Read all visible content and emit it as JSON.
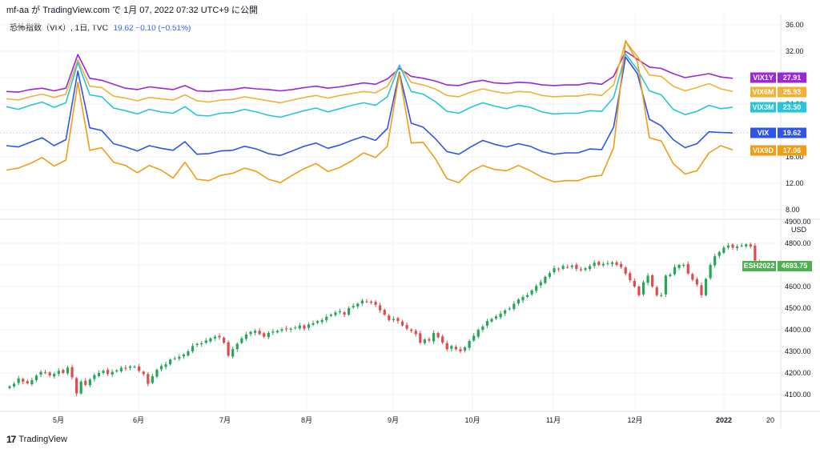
{
  "header": {
    "text": "mf-aa が TradingView.com で 1月 07, 2022 07:32 UTC+9 に公開"
  },
  "legend": {
    "title": "恐怖指数（VIX）, 1日, TVC",
    "values": "19.62  −0.10 (−0.51%)"
  },
  "footer": {
    "brand": "TradingView",
    "logo": "17"
  },
  "colors": {
    "VIX": "#2f54eb",
    "VIX9D": "#f39c12",
    "VIX3M": "#26c6da",
    "VIX6M": "#f2b134",
    "VIX1Y": "#9c27d6",
    "candle_up": "#26a65b",
    "candle_down": "#e04b4b",
    "ES_badge": "#4caf50"
  },
  "chart_data": [
    {
      "type": "line",
      "title": "恐怖指数（VIX）, 1日, TVC",
      "x_labels": [
        "5月",
        "6月",
        "7月",
        "8月",
        "9月",
        "10月",
        "11月",
        "12月",
        "2022",
        "20"
      ],
      "y_ticks": [
        "36.00",
        "32.00",
        "28.00",
        "24.00",
        "20.00",
        "16.00",
        "12.00",
        "8.00"
      ],
      "ylim": [
        8,
        36
      ],
      "grid": true,
      "series": [
        {
          "name": "VIX1Y",
          "last": "27.91",
          "values": [
            25.9,
            25.8,
            26.2,
            26.4,
            26.0,
            26.4,
            31.5,
            27.9,
            27.6,
            27.0,
            26.4,
            26.2,
            26.6,
            26.4,
            26.2,
            26.8,
            26.0,
            25.9,
            26.1,
            26.2,
            26.5,
            26.3,
            26.2,
            26.0,
            26.2,
            26.5,
            26.7,
            26.4,
            26.6,
            26.9,
            27.2,
            27.0,
            27.8,
            29.4,
            28.2,
            27.9,
            27.5,
            26.9,
            26.8,
            27.3,
            27.6,
            27.2,
            27.1,
            27.3,
            27.2,
            26.9,
            26.8,
            26.9,
            26.9,
            27.2,
            27.0,
            28.2,
            32.0,
            30.8,
            29.6,
            29.4,
            28.6,
            28.0,
            28.3,
            28.6,
            28.1,
            27.9
          ]
        },
        {
          "name": "VIX6M",
          "last": "25.93",
          "values": [
            24.8,
            24.6,
            25.1,
            25.5,
            25.0,
            25.5,
            30.7,
            26.7,
            26.5,
            25.2,
            24.9,
            24.5,
            25.0,
            24.8,
            24.6,
            25.4,
            24.5,
            24.3,
            24.6,
            24.7,
            25.1,
            24.8,
            24.5,
            24.2,
            24.6,
            25.0,
            25.3,
            24.9,
            25.3,
            25.6,
            25.9,
            25.7,
            26.7,
            29.8,
            27.3,
            26.9,
            26.3,
            25.3,
            25.1,
            25.8,
            26.3,
            25.9,
            25.6,
            25.9,
            25.8,
            25.3,
            25.1,
            25.2,
            25.2,
            25.5,
            25.3,
            26.9,
            33.5,
            31.2,
            28.4,
            28.2,
            26.7,
            26.0,
            26.5,
            27.1,
            26.3,
            25.9
          ]
        },
        {
          "name": "VIX3M",
          "last": "23.50",
          "values": [
            23.6,
            23.2,
            23.8,
            24.3,
            23.5,
            24.2,
            30.3,
            25.4,
            25.1,
            23.4,
            23.0,
            22.5,
            23.2,
            22.8,
            22.6,
            23.6,
            22.3,
            22.2,
            22.6,
            22.7,
            23.2,
            22.8,
            22.3,
            22.0,
            22.5,
            23.0,
            23.4,
            22.8,
            23.3,
            23.8,
            24.2,
            23.8,
            25.1,
            29.9,
            25.9,
            25.5,
            24.4,
            22.9,
            22.6,
            23.5,
            24.2,
            23.7,
            23.3,
            23.8,
            23.5,
            22.8,
            22.5,
            22.6,
            22.6,
            23.0,
            22.9,
            25.0,
            31.6,
            29.2,
            26.0,
            25.4,
            23.2,
            22.4,
            22.9,
            23.8,
            23.3,
            23.5
          ]
        },
        {
          "name": "VIX",
          "last": "19.62",
          "values": [
            17.7,
            17.5,
            18.2,
            18.9,
            17.7,
            18.6,
            29.0,
            20.4,
            20.0,
            18.0,
            17.5,
            16.9,
            17.7,
            17.3,
            17.0,
            18.3,
            16.4,
            16.5,
            16.9,
            17.0,
            17.6,
            17.2,
            16.5,
            16.2,
            16.9,
            17.6,
            18.1,
            17.3,
            17.8,
            18.5,
            19.1,
            18.5,
            20.3,
            28.8,
            21.1,
            20.5,
            18.8,
            16.8,
            16.4,
            17.5,
            18.5,
            17.9,
            17.5,
            18.0,
            17.6,
            16.8,
            16.4,
            16.6,
            16.6,
            17.2,
            17.1,
            20.5,
            31.1,
            28.6,
            21.7,
            20.7,
            18.6,
            17.4,
            18.0,
            19.8,
            19.7,
            19.62
          ]
        },
        {
          "name": "VIX9D",
          "last": "17.06",
          "values": [
            14.0,
            14.3,
            15.0,
            15.9,
            14.6,
            15.5,
            27.3,
            17.0,
            17.4,
            15.2,
            14.7,
            13.6,
            14.7,
            14.0,
            12.8,
            15.2,
            12.6,
            12.4,
            13.2,
            13.5,
            14.3,
            13.8,
            12.6,
            12.1,
            13.2,
            14.2,
            15.0,
            13.8,
            14.4,
            15.4,
            16.6,
            15.9,
            17.6,
            28.6,
            18.1,
            18.2,
            15.8,
            12.7,
            12.1,
            13.8,
            14.7,
            14.1,
            13.9,
            14.7,
            13.9,
            12.9,
            12.2,
            12.4,
            12.4,
            13.0,
            13.2,
            17.4,
            33.6,
            30.4,
            18.9,
            18.4,
            15.0,
            13.4,
            13.9,
            16.6,
            17.7,
            17.06
          ]
        }
      ]
    },
    {
      "type": "candlestick",
      "title": "ESH2022",
      "unit": "USD",
      "last": "4693.75",
      "y_ticks": [
        "4900.00",
        "4800.00",
        "4700.00",
        "4600.00",
        "4500.00",
        "4400.00",
        "4300.00",
        "4200.00",
        "4100.00"
      ],
      "ylim": [
        4060,
        4900
      ],
      "grid": true,
      "closes": [
        4138,
        4150,
        4175,
        4160,
        4152,
        4167,
        4188,
        4205,
        4200,
        4188,
        4196,
        4210,
        4200,
        4225,
        4180,
        4105,
        4160,
        4145,
        4170,
        4190,
        4200,
        4210,
        4195,
        4205,
        4212,
        4224,
        4220,
        4230,
        4228,
        4210,
        4195,
        4150,
        4185,
        4215,
        4232,
        4240,
        4262,
        4268,
        4275,
        4285,
        4300,
        4325,
        4335,
        4338,
        4350,
        4360,
        4368,
        4365,
        4340,
        4280,
        4310,
        4335,
        4360,
        4378,
        4390,
        4395,
        4380,
        4368,
        4385,
        4392,
        4395,
        4402,
        4402,
        4405,
        4410,
        4420,
        4405,
        4425,
        4430,
        4440,
        4445,
        4460,
        4470,
        4480,
        4485,
        4470,
        4500,
        4510,
        4520,
        4535,
        4530,
        4525,
        4515,
        4490,
        4470,
        4445,
        4450,
        4440,
        4420,
        4405,
        4395,
        4380,
        4340,
        4355,
        4350,
        4385,
        4365,
        4340,
        4310,
        4325,
        4310,
        4300,
        4318,
        4348,
        4372,
        4400,
        4415,
        4440,
        4450,
        4462,
        4475,
        4490,
        4498,
        4520,
        4540,
        4552,
        4560,
        4582,
        4603,
        4620,
        4645,
        4662,
        4685,
        4680,
        4695,
        4690,
        4697,
        4682,
        4675,
        4685,
        4695,
        4710,
        4700,
        4705,
        4708,
        4712,
        4700,
        4690,
        4660,
        4630,
        4600,
        4560,
        4620,
        4650,
        4600,
        4560,
        4560,
        4650,
        4655,
        4690,
        4700,
        4700,
        4660,
        4632,
        4610,
        4560,
        4635,
        4700,
        4740,
        4760,
        4780,
        4790,
        4780,
        4785,
        4790,
        4795,
        4785,
        4720,
        4694
      ]
    }
  ]
}
